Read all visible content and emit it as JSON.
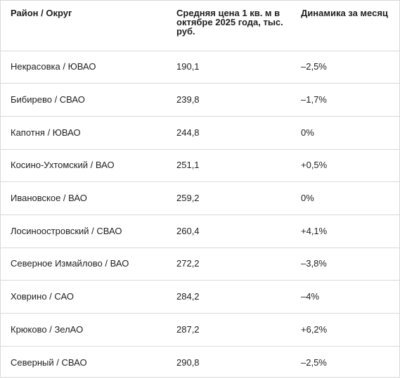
{
  "table": {
    "headers": [
      "Район / Округ",
      "Средняя цена 1 кв. м в октябре 2025 года, тыс. руб.",
      "Динамика за месяц"
    ],
    "rows": [
      [
        "Некрасовка / ЮВАО",
        "190,1",
        "–2,5%"
      ],
      [
        "Бибирево / СВАО",
        "239,8",
        "–1,7%"
      ],
      [
        "Капотня / ЮВАО",
        "244,8",
        "0%"
      ],
      [
        "Косино-Ухтомский / ВАО",
        "251,1",
        "+0,5%"
      ],
      [
        "Ивановское / ВАО",
        "259,2",
        "0%"
      ],
      [
        "Лосиноостровский / СВАО",
        "260,4",
        "+4,1%"
      ],
      [
        "Северное Измайлово / ВАО",
        "272,2",
        "–3,8%"
      ],
      [
        "Ховрино / САО",
        "284,2",
        "–4%"
      ],
      [
        "Крюково / ЗелАО",
        "287,2",
        "+6,2%"
      ],
      [
        "Северный / СВАО",
        "290,8",
        "–2,5%"
      ]
    ]
  }
}
